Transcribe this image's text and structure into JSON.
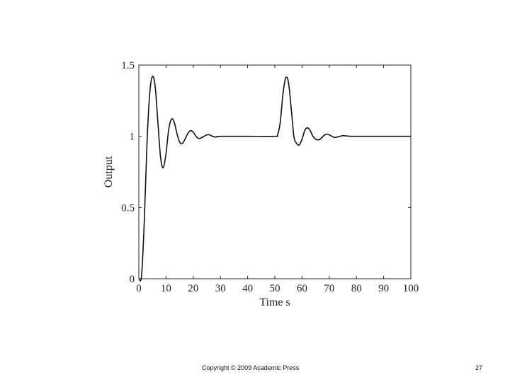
{
  "chart_data": {
    "type": "line",
    "title": "",
    "xlabel": "Time s",
    "ylabel": "Output",
    "xlim": [
      0,
      100
    ],
    "ylim": [
      0,
      1.5
    ],
    "xticks": [
      0,
      10,
      20,
      30,
      40,
      50,
      60,
      70,
      80,
      90,
      100
    ],
    "yticks": [
      0,
      0.5,
      1,
      1.5
    ],
    "ytick_labels": [
      "0",
      "0.5",
      "1",
      "1.5"
    ],
    "grid": false,
    "legend": "none",
    "line_color": "#111111",
    "series": [
      {
        "x": [
          0,
          1,
          2,
          3,
          4,
          5,
          6,
          7,
          8,
          9,
          10,
          11,
          12,
          13,
          14,
          15,
          16,
          17,
          18,
          19,
          20,
          21,
          22,
          23,
          24,
          25,
          26,
          27,
          28,
          29,
          30,
          40,
          50,
          51,
          52,
          53,
          54,
          55,
          56,
          57,
          58,
          59,
          60,
          61,
          62,
          63,
          64,
          65,
          66,
          67,
          68,
          69,
          70,
          71,
          72,
          73,
          74,
          75,
          76,
          78,
          80,
          90,
          100
        ],
        "y": [
          0,
          0.02,
          0.4,
          0.95,
          1.3,
          1.42,
          1.35,
          1.1,
          0.85,
          0.78,
          0.88,
          1.05,
          1.12,
          1.1,
          1.02,
          0.96,
          0.95,
          0.98,
          1.02,
          1.04,
          1.03,
          1.0,
          0.985,
          0.99,
          1.0,
          1.01,
          1.01,
          1.0,
          0.995,
          0.997,
          1.0,
          1.0,
          1.0,
          1.01,
          1.1,
          1.3,
          1.41,
          1.38,
          1.2,
          1.0,
          0.95,
          0.94,
          0.98,
          1.04,
          1.06,
          1.04,
          1.0,
          0.98,
          0.975,
          0.985,
          1.005,
          1.015,
          1.01,
          1.0,
          0.992,
          0.995,
          1.0,
          1.005,
          1.003,
          1.0,
          1.0,
          1.0,
          1.0
        ]
      }
    ]
  },
  "footer": {
    "copyright": "Copyright © 2009 Academic Press",
    "page_number": "27"
  }
}
